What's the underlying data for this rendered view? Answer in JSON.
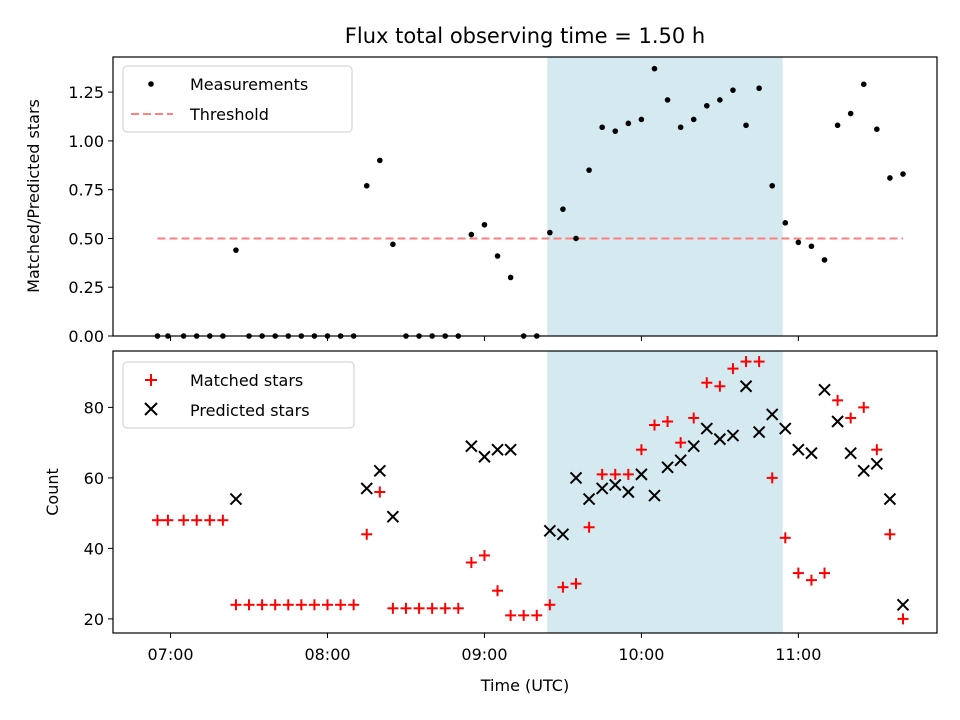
{
  "chart_data": [
    {
      "type": "scatter",
      "title": "Flux total observing time = 1.50 h",
      "xlabel": "",
      "ylabel": "Matched/Predicted stars",
      "xlim": [
        "06:38",
        "11:53"
      ],
      "ylim": [
        0,
        1.43
      ],
      "yticks": [
        "0.00",
        "0.25",
        "0.50",
        "0.75",
        "1.00",
        "1.25"
      ],
      "shaded_interval": [
        "09:24",
        "10:54"
      ],
      "shade_color": "#d4e9f0",
      "grid": false,
      "legend_position": "top-left",
      "series": [
        {
          "name": "Measurements",
          "marker": "dot",
          "color": "#000000",
          "points": [
            [
              "06:55",
              0.0
            ],
            [
              "06:59",
              0.0
            ],
            [
              "07:05",
              0.0
            ],
            [
              "07:10",
              0.0
            ],
            [
              "07:15",
              0.0
            ],
            [
              "07:20",
              0.0
            ],
            [
              "07:25",
              0.44
            ],
            [
              "07:30",
              0.0
            ],
            [
              "07:35",
              0.0
            ],
            [
              "07:40",
              0.0
            ],
            [
              "07:45",
              0.0
            ],
            [
              "07:50",
              0.0
            ],
            [
              "07:55",
              0.0
            ],
            [
              "08:00",
              0.0
            ],
            [
              "08:05",
              0.0
            ],
            [
              "08:10",
              0.0
            ],
            [
              "08:15",
              0.77
            ],
            [
              "08:20",
              0.9
            ],
            [
              "08:25",
              0.47
            ],
            [
              "08:30",
              0.0
            ],
            [
              "08:35",
              0.0
            ],
            [
              "08:40",
              0.0
            ],
            [
              "08:45",
              0.0
            ],
            [
              "08:50",
              0.0
            ],
            [
              "08:55",
              0.52
            ],
            [
              "09:00",
              0.57
            ],
            [
              "09:05",
              0.41
            ],
            [
              "09:10",
              0.3
            ],
            [
              "09:15",
              0.0
            ],
            [
              "09:20",
              0.0
            ],
            [
              "09:25",
              0.53
            ],
            [
              "09:30",
              0.65
            ],
            [
              "09:35",
              0.5
            ],
            [
              "09:40",
              0.85
            ],
            [
              "09:45",
              1.07
            ],
            [
              "09:50",
              1.05
            ],
            [
              "09:55",
              1.09
            ],
            [
              "10:00",
              1.11
            ],
            [
              "10:05",
              1.37
            ],
            [
              "10:10",
              1.21
            ],
            [
              "10:15",
              1.07
            ],
            [
              "10:20",
              1.11
            ],
            [
              "10:25",
              1.18
            ],
            [
              "10:30",
              1.21
            ],
            [
              "10:35",
              1.26
            ],
            [
              "10:40",
              1.08
            ],
            [
              "10:45",
              1.27
            ],
            [
              "10:50",
              0.77
            ],
            [
              "10:55",
              0.58
            ],
            [
              "11:00",
              0.48
            ],
            [
              "11:05",
              0.46
            ],
            [
              "11:10",
              0.39
            ],
            [
              "11:15",
              1.08
            ],
            [
              "11:20",
              1.14
            ],
            [
              "11:25",
              1.29
            ],
            [
              "11:30",
              1.06
            ],
            [
              "11:35",
              0.81
            ],
            [
              "11:40",
              0.83
            ]
          ]
        },
        {
          "name": "Threshold",
          "marker": "dashed-line",
          "color": "#ff7f7f",
          "points": [
            [
              "06:55",
              0.5
            ],
            [
              "11:40",
              0.5
            ]
          ]
        }
      ]
    },
    {
      "type": "scatter",
      "title": "",
      "xlabel": "Time (UTC)",
      "ylabel": "Count",
      "xlim": [
        "06:38",
        "11:53"
      ],
      "ylim": [
        16,
        96
      ],
      "yticks": [
        "20",
        "40",
        "60",
        "80"
      ],
      "xticks": [
        "07:00",
        "08:00",
        "09:00",
        "10:00",
        "11:00"
      ],
      "shaded_interval": [
        "09:24",
        "10:54"
      ],
      "shade_color": "#d4e9f0",
      "grid": false,
      "legend_position": "top-left",
      "series": [
        {
          "name": "Matched stars",
          "marker": "plus",
          "color": "#ff0000",
          "points": [
            [
              "06:55",
              48
            ],
            [
              "06:59",
              48
            ],
            [
              "07:05",
              48
            ],
            [
              "07:10",
              48
            ],
            [
              "07:15",
              48
            ],
            [
              "07:20",
              48
            ],
            [
              "07:25",
              24
            ],
            [
              "07:30",
              24
            ],
            [
              "07:35",
              24
            ],
            [
              "07:40",
              24
            ],
            [
              "07:45",
              24
            ],
            [
              "07:50",
              24
            ],
            [
              "07:55",
              24
            ],
            [
              "08:00",
              24
            ],
            [
              "08:05",
              24
            ],
            [
              "08:10",
              24
            ],
            [
              "08:15",
              44
            ],
            [
              "08:20",
              56
            ],
            [
              "08:25",
              23
            ],
            [
              "08:30",
              23
            ],
            [
              "08:35",
              23
            ],
            [
              "08:40",
              23
            ],
            [
              "08:45",
              23
            ],
            [
              "08:50",
              23
            ],
            [
              "08:55",
              36
            ],
            [
              "09:00",
              38
            ],
            [
              "09:05",
              28
            ],
            [
              "09:10",
              21
            ],
            [
              "09:15",
              21
            ],
            [
              "09:20",
              21
            ],
            [
              "09:25",
              24
            ],
            [
              "09:30",
              29
            ],
            [
              "09:35",
              30
            ],
            [
              "09:40",
              46
            ],
            [
              "09:45",
              61
            ],
            [
              "09:50",
              61
            ],
            [
              "09:55",
              61
            ],
            [
              "10:00",
              68
            ],
            [
              "10:05",
              75
            ],
            [
              "10:10",
              76
            ],
            [
              "10:15",
              70
            ],
            [
              "10:20",
              77
            ],
            [
              "10:25",
              87
            ],
            [
              "10:30",
              86
            ],
            [
              "10:35",
              91
            ],
            [
              "10:40",
              93
            ],
            [
              "10:45",
              93
            ],
            [
              "10:50",
              60
            ],
            [
              "10:55",
              43
            ],
            [
              "11:00",
              33
            ],
            [
              "11:05",
              31
            ],
            [
              "11:10",
              33
            ],
            [
              "11:15",
              82
            ],
            [
              "11:20",
              77
            ],
            [
              "11:25",
              80
            ],
            [
              "11:30",
              68
            ],
            [
              "11:35",
              44
            ],
            [
              "11:40",
              20
            ]
          ]
        },
        {
          "name": "Predicted stars",
          "marker": "x",
          "color": "#000000",
          "points": [
            [
              "07:25",
              54
            ],
            [
              "08:15",
              57
            ],
            [
              "08:20",
              62
            ],
            [
              "08:25",
              49
            ],
            [
              "08:55",
              69
            ],
            [
              "09:00",
              66
            ],
            [
              "09:05",
              68
            ],
            [
              "09:10",
              68
            ],
            [
              "09:25",
              45
            ],
            [
              "09:30",
              44
            ],
            [
              "09:35",
              60
            ],
            [
              "09:40",
              54
            ],
            [
              "09:45",
              57
            ],
            [
              "09:50",
              58
            ],
            [
              "09:55",
              56
            ],
            [
              "10:00",
              61
            ],
            [
              "10:05",
              55
            ],
            [
              "10:10",
              63
            ],
            [
              "10:15",
              65
            ],
            [
              "10:20",
              69
            ],
            [
              "10:25",
              74
            ],
            [
              "10:30",
              71
            ],
            [
              "10:35",
              72
            ],
            [
              "10:40",
              86
            ],
            [
              "10:45",
              73
            ],
            [
              "10:50",
              78
            ],
            [
              "10:55",
              74
            ],
            [
              "11:00",
              68
            ],
            [
              "11:05",
              67
            ],
            [
              "11:10",
              85
            ],
            [
              "11:15",
              76
            ],
            [
              "11:20",
              67
            ],
            [
              "11:25",
              62
            ],
            [
              "11:30",
              64
            ],
            [
              "11:35",
              54
            ],
            [
              "11:40",
              24
            ]
          ]
        }
      ]
    }
  ]
}
